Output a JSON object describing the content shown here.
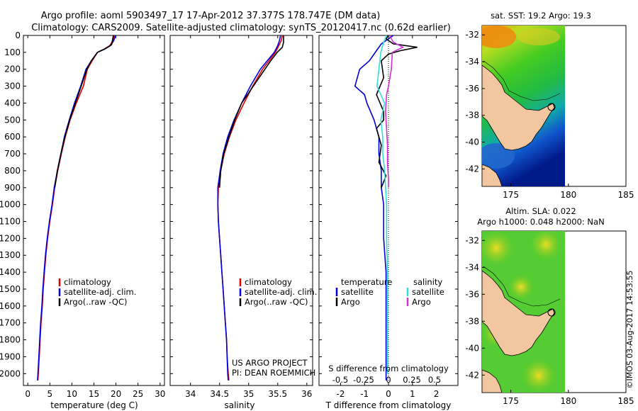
{
  "header": {
    "title_line1": "Argo profile: aoml 5903497_17 17-Apr-2012 37.377S 178.747E (DM data)",
    "title_line2": "Climatology: CARS2009. Satellite-adjusted climatology: synTS_20120417.nc (0.62d earlier)"
  },
  "colors": {
    "climatology": "#dd0000",
    "satellite": "#0000dd",
    "argo": "#000000",
    "sat_salinity": "#33dddd",
    "argo_salinity": "#cc33cc",
    "land": "#f2c7a0"
  },
  "chart_data": [
    {
      "type": "line",
      "name": "temperature-panel",
      "xlabel": "temperature (deg C)",
      "xlim": [
        -1,
        31
      ],
      "ylim": [
        2070,
        0
      ],
      "xticks": [
        0,
        5,
        10,
        15,
        20,
        25,
        30
      ],
      "yticks": [
        0,
        100,
        200,
        300,
        400,
        500,
        600,
        700,
        800,
        900,
        1000,
        1100,
        1200,
        1300,
        1400,
        1500,
        1600,
        1700,
        1800,
        1900,
        2000
      ],
      "legend": [
        "climatology",
        "satellite-adj. clim.",
        "Argo(..raw -QC)"
      ],
      "series": [
        {
          "name": "climatology",
          "color": "#dd0000",
          "points": [
            [
              19.6,
              0
            ],
            [
              19.3,
              30
            ],
            [
              18.6,
              60
            ],
            [
              17.4,
              80
            ],
            [
              15.8,
              100
            ],
            [
              14.6,
              150
            ],
            [
              13.5,
              200
            ],
            [
              12.6,
              300
            ],
            [
              11.0,
              400
            ],
            [
              9.6,
              500
            ],
            [
              8.5,
              600
            ],
            [
              7.6,
              700
            ],
            [
              6.8,
              800
            ],
            [
              6.1,
              900
            ],
            [
              5.6,
              1000
            ],
            [
              5.0,
              1100
            ],
            [
              4.5,
              1200
            ],
            [
              4.1,
              1300
            ],
            [
              3.8,
              1400
            ],
            [
              3.5,
              1500
            ],
            [
              3.3,
              1600
            ],
            [
              3.0,
              1700
            ],
            [
              2.8,
              1800
            ],
            [
              2.6,
              1900
            ],
            [
              2.4,
              2000
            ],
            [
              2.3,
              2040
            ]
          ]
        },
        {
          "name": "satellite-adj. clim.",
          "color": "#0000dd",
          "points": [
            [
              19.9,
              0
            ],
            [
              19.5,
              30
            ],
            [
              18.8,
              60
            ],
            [
              17.5,
              80
            ],
            [
              15.8,
              100
            ],
            [
              14.4,
              150
            ],
            [
              13.2,
              200
            ],
            [
              12.0,
              300
            ],
            [
              10.6,
              400
            ],
            [
              9.4,
              500
            ],
            [
              8.3,
              600
            ],
            [
              7.5,
              700
            ],
            [
              6.7,
              800
            ],
            [
              6.0,
              900
            ],
            [
              5.5,
              1000
            ],
            [
              4.9,
              1100
            ],
            [
              4.4,
              1200
            ],
            [
              4.0,
              1300
            ],
            [
              3.7,
              1400
            ],
            [
              3.4,
              1500
            ],
            [
              3.2,
              1600
            ],
            [
              2.9,
              1700
            ],
            [
              2.7,
              1800
            ],
            [
              2.5,
              1900
            ],
            [
              2.3,
              2000
            ],
            [
              2.2,
              2040
            ]
          ]
        },
        {
          "name": "Argo(..raw -QC)",
          "color": "#000000",
          "points": [
            [
              19.4,
              0
            ],
            [
              19.2,
              30
            ],
            [
              19.0,
              55
            ],
            [
              17.5,
              80
            ],
            [
              15.8,
              100
            ],
            [
              14.4,
              150
            ],
            [
              13.4,
              200
            ],
            [
              12.1,
              300
            ],
            [
              10.8,
              400
            ],
            [
              9.5,
              500
            ],
            [
              8.4,
              600
            ],
            [
              7.5,
              700
            ],
            [
              6.7,
              800
            ],
            [
              6.1,
              900
            ]
          ]
        }
      ]
    },
    {
      "type": "line",
      "name": "salinity-panel",
      "xlabel": "salinity",
      "xlim": [
        33.65,
        36.1
      ],
      "ylim": [
        2070,
        0
      ],
      "xticks": [
        34,
        34.5,
        35,
        35.5,
        36
      ],
      "legend": [
        "climatology",
        "satellite-adj. clim.",
        "Argo(..raw -QC)"
      ],
      "annotation_line1": "US ARGO PROJECT",
      "annotation_line2": "PI: DEAN ROEMMICH",
      "series": [
        {
          "name": "climatology",
          "color": "#dd0000",
          "points": [
            [
              35.58,
              0
            ],
            [
              35.56,
              30
            ],
            [
              35.52,
              60
            ],
            [
              35.46,
              100
            ],
            [
              35.35,
              150
            ],
            [
              35.24,
              200
            ],
            [
              35.07,
              300
            ],
            [
              34.92,
              400
            ],
            [
              34.78,
              500
            ],
            [
              34.67,
              600
            ],
            [
              34.58,
              700
            ],
            [
              34.52,
              800
            ],
            [
              34.48,
              900
            ],
            [
              34.47,
              1000
            ],
            [
              34.48,
              1100
            ],
            [
              34.5,
              1200
            ],
            [
              34.52,
              1300
            ],
            [
              34.54,
              1400
            ],
            [
              34.56,
              1500
            ],
            [
              34.58,
              1600
            ],
            [
              34.6,
              1700
            ],
            [
              34.62,
              1800
            ],
            [
              34.63,
              1900
            ],
            [
              34.65,
              2000
            ],
            [
              34.66,
              2040
            ]
          ]
        },
        {
          "name": "satellite-adj. clim.",
          "color": "#0000dd",
          "points": [
            [
              35.55,
              0
            ],
            [
              35.53,
              30
            ],
            [
              35.5,
              60
            ],
            [
              35.44,
              100
            ],
            [
              35.32,
              150
            ],
            [
              35.2,
              200
            ],
            [
              35.03,
              300
            ],
            [
              34.88,
              400
            ],
            [
              34.75,
              500
            ],
            [
              34.64,
              600
            ],
            [
              34.56,
              700
            ],
            [
              34.51,
              800
            ],
            [
              34.47,
              900
            ],
            [
              34.47,
              1000
            ],
            [
              34.48,
              1100
            ],
            [
              34.5,
              1200
            ],
            [
              34.52,
              1300
            ],
            [
              34.54,
              1400
            ],
            [
              34.56,
              1500
            ],
            [
              34.58,
              1600
            ],
            [
              34.6,
              1700
            ],
            [
              34.62,
              1800
            ],
            [
              34.63,
              1900
            ],
            [
              34.64,
              2000
            ],
            [
              34.65,
              2040
            ]
          ]
        },
        {
          "name": "Argo(..raw -QC)",
          "color": "#000000",
          "points": [
            [
              35.6,
              0
            ],
            [
              35.6,
              40
            ],
            [
              35.58,
              70
            ],
            [
              35.49,
              100
            ],
            [
              35.38,
              150
            ],
            [
              35.28,
              200
            ],
            [
              35.08,
              300
            ],
            [
              34.88,
              400
            ],
            [
              34.76,
              500
            ],
            [
              34.66,
              600
            ],
            [
              34.57,
              700
            ],
            [
              34.52,
              800
            ],
            [
              34.5,
              900
            ]
          ]
        }
      ]
    },
    {
      "type": "line",
      "name": "difference-panel",
      "xlabel": "T difference from climatology",
      "xlabel_top": "S difference from climatology",
      "xlim": [
        -2.9,
        2.9
      ],
      "ylim": [
        2070,
        0
      ],
      "xticks": [
        -2,
        -1,
        0,
        1,
        2
      ],
      "s_ticks": [
        "-0.5",
        "-0.25",
        "0",
        "0.25",
        "0.5"
      ],
      "legend_titles": [
        "temperature",
        "salinity"
      ],
      "legend_temperature": [
        "satellite",
        "Argo"
      ],
      "legend_salinity": [
        "satellite",
        "Argo"
      ],
      "series": [
        {
          "name": "temperature satellite",
          "color": "#0000dd",
          "points": [
            [
              0.2,
              0
            ],
            [
              0.0,
              20
            ],
            [
              -0.3,
              50
            ],
            [
              -0.5,
              90
            ],
            [
              -0.8,
              150
            ],
            [
              -1.2,
              200
            ],
            [
              -1.4,
              300
            ],
            [
              -1.0,
              350
            ],
            [
              -0.9,
              400
            ],
            [
              -0.6,
              500
            ],
            [
              -0.4,
              600
            ],
            [
              -0.4,
              700
            ],
            [
              -0.3,
              800
            ],
            [
              -0.3,
              900
            ],
            [
              -0.2,
              1000
            ],
            [
              -0.2,
              1200
            ],
            [
              -0.1,
              1400
            ],
            [
              -0.1,
              1600
            ],
            [
              -0.1,
              1800
            ],
            [
              -0.1,
              2000
            ],
            [
              -0.1,
              2040
            ]
          ]
        },
        {
          "name": "temperature Argo",
          "color": "#000000",
          "points": [
            [
              0.0,
              0
            ],
            [
              -0.1,
              20
            ],
            [
              0.2,
              50
            ],
            [
              1.2,
              70
            ],
            [
              0.5,
              90
            ],
            [
              0.0,
              110
            ],
            [
              -0.3,
              150
            ],
            [
              -0.2,
              250
            ],
            [
              -0.5,
              350
            ],
            [
              -0.2,
              450
            ],
            [
              -0.2,
              500
            ],
            [
              -0.5,
              550
            ],
            [
              -0.3,
              650
            ],
            [
              -0.4,
              750
            ],
            [
              -0.1,
              830
            ],
            [
              -0.3,
              900
            ]
          ]
        },
        {
          "name": "salinity satellite",
          "color": "#33dddd",
          "points": [
            [
              -0.02,
              0
            ],
            [
              -0.05,
              40
            ],
            [
              -0.08,
              100
            ],
            [
              -0.1,
              200
            ],
            [
              -0.12,
              300
            ],
            [
              -0.04,
              400
            ],
            [
              -0.08,
              500
            ],
            [
              -0.06,
              600
            ],
            [
              -0.06,
              700
            ],
            [
              -0.04,
              800
            ],
            [
              -0.03,
              900
            ],
            [
              -0.02,
              1000
            ],
            [
              -0.02,
              1200
            ],
            [
              -0.01,
              1400
            ],
            [
              -0.01,
              1600
            ],
            [
              -0.01,
              1800
            ],
            [
              -0.01,
              2000
            ]
          ]
        },
        {
          "name": "salinity Argo",
          "color": "#cc33cc",
          "points": [
            [
              0.01,
              0
            ],
            [
              0.05,
              40
            ],
            [
              0.15,
              70
            ],
            [
              0.04,
              100
            ],
            [
              0.03,
              200
            ],
            [
              0.0,
              300
            ],
            [
              -0.02,
              350
            ],
            [
              -0.03,
              450
            ],
            [
              -0.02,
              550
            ],
            [
              -0.01,
              650
            ],
            [
              -0.01,
              750
            ],
            [
              0.0,
              850
            ],
            [
              0.0,
              900
            ]
          ]
        }
      ]
    },
    {
      "type": "heatmap",
      "name": "sst-map",
      "title": "sat. SST: 19.2  Argo: 19.3",
      "xlim": [
        172.5,
        185
      ],
      "ylim": [
        -43.3,
        -31.3
      ],
      "xticks": [
        175,
        180,
        185
      ],
      "yticks": [
        -32,
        -34,
        -36,
        -38,
        -40,
        -42
      ],
      "argo_position": [
        178.75,
        -37.38
      ]
    },
    {
      "type": "heatmap",
      "name": "sla-map",
      "title_line1": "Altim. SLA: 0.022",
      "title_line2": "Argo h1000: 0.048 h2000: NaN",
      "xlim": [
        172.5,
        185
      ],
      "ylim": [
        -43.3,
        -31.3
      ],
      "xticks": [
        175,
        180,
        185
      ],
      "yticks": [
        -32,
        -34,
        -36,
        -38,
        -40,
        -42
      ],
      "argo_position": [
        178.75,
        -37.38
      ]
    }
  ],
  "footer": {
    "credit": "©IMOS 03-Aug-2017 14:53:55"
  }
}
